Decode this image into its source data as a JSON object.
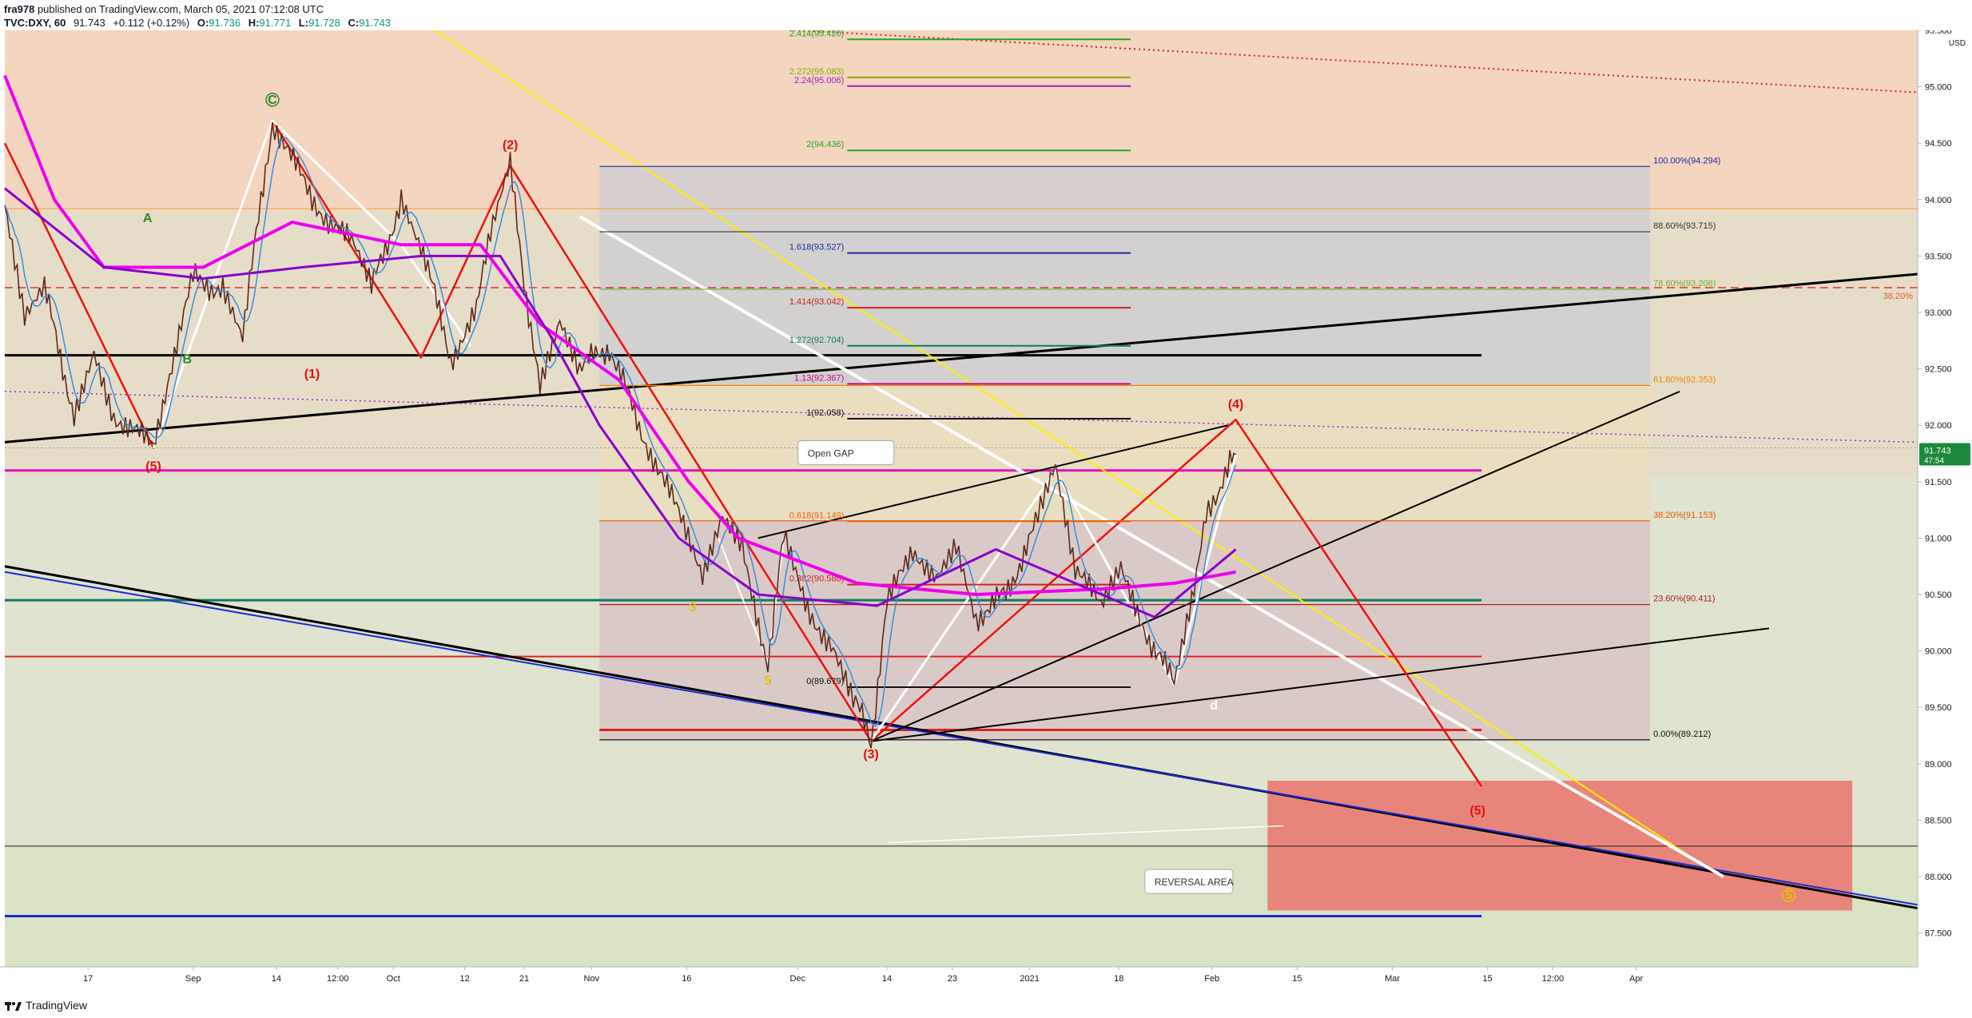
{
  "header": {
    "author": "fra978",
    "published_text": "published on TradingView.com, March 05, 2021 07:12:08 UTC",
    "symbol": "TVC:DXY, 60",
    "last": "91.743",
    "change": "+0.112 (+0.12%)",
    "open_label": "O:",
    "open": "91.736",
    "high_label": "H:",
    "high": "91.771",
    "low_label": "L:",
    "low": "91.728",
    "close_label": "C:",
    "close": "91.743"
  },
  "footer": {
    "brand": "TradingView"
  },
  "colors": {
    "up": "#089981",
    "down": "#f23645",
    "fib_top_zone": "#f4d5bf",
    "pink_ma": "#ee00ee",
    "purple_ma": "#8800cc",
    "price_badge": "#1b8a3a"
  },
  "chart_data": {
    "type": "candlestick",
    "title": "",
    "currency": "USD",
    "y_range": [
      87.2,
      95.5
    ],
    "price_axis_ticks": [
      "95.500",
      "95.000",
      "94.500",
      "94.000",
      "93.500",
      "93.000",
      "92.500",
      "92.000",
      "91.500",
      "91.000",
      "90.500",
      "90.000",
      "89.500",
      "89.000",
      "88.500",
      "88.000",
      "87.500"
    ],
    "time_axis_ticks": [
      "17",
      "Sep",
      "14",
      "12:00",
      "Oct",
      "12",
      "21",
      "Nov",
      "16",
      "Dec",
      "14",
      "23",
      "2021",
      "18",
      "Feb",
      "15",
      "Mar",
      "15",
      "12:00",
      "Apr"
    ],
    "last_price": "91.743",
    "last_price_sub": "47:54",
    "price_path": [
      [
        0,
        93.9
      ],
      [
        10,
        92.9
      ],
      [
        20,
        93.2
      ],
      [
        35,
        92.1
      ],
      [
        45,
        92.7
      ],
      [
        55,
        92.1
      ],
      [
        75,
        91.8
      ],
      [
        82,
        92.4
      ],
      [
        95,
        93.3
      ],
      [
        110,
        93.2
      ],
      [
        120,
        92.8
      ],
      [
        135,
        94.7
      ],
      [
        155,
        94.0
      ],
      [
        175,
        93.6
      ],
      [
        185,
        93.2
      ],
      [
        200,
        94.0
      ],
      [
        210,
        93.6
      ],
      [
        225,
        92.6
      ],
      [
        238,
        93.0
      ],
      [
        245,
        93.7
      ],
      [
        255,
        94.3
      ],
      [
        262,
        93.3
      ],
      [
        270,
        92.3
      ],
      [
        280,
        92.9
      ],
      [
        290,
        92.5
      ],
      [
        305,
        92.7
      ],
      [
        320,
        92.0
      ],
      [
        340,
        91.2
      ],
      [
        352,
        90.7
      ],
      [
        362,
        91.2
      ],
      [
        372,
        90.9
      ],
      [
        385,
        89.9
      ],
      [
        393,
        91.0
      ],
      [
        405,
        90.4
      ],
      [
        418,
        90.0
      ],
      [
        428,
        89.6
      ],
      [
        437,
        89.2
      ],
      [
        445,
        90.4
      ],
      [
        458,
        90.9
      ],
      [
        470,
        90.7
      ],
      [
        480,
        91.0
      ],
      [
        490,
        90.3
      ],
      [
        505,
        90.5
      ],
      [
        520,
        91.1
      ],
      [
        530,
        91.6
      ],
      [
        540,
        90.7
      ],
      [
        553,
        90.4
      ],
      [
        563,
        90.7
      ],
      [
        575,
        90.2
      ],
      [
        590,
        89.7
      ],
      [
        600,
        90.5
      ],
      [
        606,
        91.2
      ],
      [
        612,
        91.4
      ],
      [
        618,
        91.75
      ],
      [
        621,
        91.74
      ]
    ],
    "moving_averages": [
      {
        "color": "#ee00ee",
        "values": [
          [
            0,
            95.1
          ],
          [
            25,
            94.0
          ],
          [
            50,
            93.4
          ],
          [
            100,
            93.4
          ],
          [
            145,
            93.8
          ],
          [
            200,
            93.6
          ],
          [
            240,
            93.6
          ],
          [
            270,
            92.9
          ],
          [
            310,
            92.4
          ],
          [
            345,
            91.5
          ],
          [
            370,
            91.0
          ],
          [
            430,
            90.6
          ],
          [
            490,
            90.5
          ],
          [
            555,
            90.55
          ],
          [
            590,
            90.6
          ],
          [
            621,
            90.7
          ]
        ]
      },
      {
        "color": "#8800cc",
        "values": [
          [
            0,
            94.1
          ],
          [
            50,
            93.4
          ],
          [
            100,
            93.3
          ],
          [
            150,
            93.4
          ],
          [
            210,
            93.5
          ],
          [
            250,
            93.5
          ],
          [
            275,
            92.8
          ],
          [
            300,
            92.0
          ],
          [
            340,
            91.0
          ],
          [
            380,
            90.5
          ],
          [
            440,
            90.4
          ],
          [
            500,
            90.9
          ],
          [
            540,
            90.6
          ],
          [
            580,
            90.3
          ],
          [
            621,
            90.9
          ]
        ]
      }
    ],
    "fib_extension": [
      {
        "label": "2.414(95.420)",
        "value": 95.42,
        "color": "#21a821"
      },
      {
        "label": "2.272(95.083)",
        "value": 95.083,
        "color": "#88aa00"
      },
      {
        "label": "2.24(95.006)",
        "value": 95.006,
        "color": "#9922cc"
      },
      {
        "label": "2(94.436)",
        "value": 94.436,
        "color": "#21a821"
      },
      {
        "label": "1.618(93.527)",
        "value": 93.527,
        "color": "#1c2aa8"
      },
      {
        "label": "1.414(93.042)",
        "value": 93.042,
        "color": "#cc2222"
      },
      {
        "label": "1.272(92.704)",
        "value": 92.704,
        "color": "#107a5e"
      },
      {
        "label": "1.13(92.367)",
        "value": 92.367,
        "color": "#d4008a"
      },
      {
        "label": "1(92.058)",
        "value": 92.058,
        "color": "#111111"
      },
      {
        "label": "0.618(91.149)",
        "value": 91.149,
        "color": "#ee6600"
      },
      {
        "label": "0.382(90.588)",
        "value": 90.588,
        "color": "#cc2222"
      },
      {
        "label": "0(89.679)",
        "value": 89.679,
        "color": "#111111"
      }
    ],
    "fib_retracement": [
      {
        "label": "100.00%(94.294)",
        "value": 94.294,
        "color": "#1c2aa8"
      },
      {
        "label": "88.60%(93.715)",
        "value": 93.715,
        "color": "#333333"
      },
      {
        "label": "78.60%(93.206)",
        "value": 93.206,
        "color": "#77aa33"
      },
      {
        "label": "61.80%(92.353)",
        "value": 92.353,
        "color": "#ee8800"
      },
      {
        "label": "38.20%(91.153)",
        "value": 91.153,
        "color": "#ee5500"
      },
      {
        "label": "23.60%(90.411)",
        "value": 90.411,
        "color": "#aa2222"
      },
      {
        "label": "0.00%(89.212)",
        "value": 89.212,
        "color": "#111111"
      }
    ],
    "right_edge_label": "38.20%",
    "wave_labels": [
      {
        "text": "C",
        "color": "#2a8a2a",
        "circle": true
      },
      {
        "text": "A",
        "color": "#2a8a2a",
        "circle": false
      },
      {
        "text": "B",
        "color": "#2a8a2a",
        "circle": false
      },
      {
        "text": "(5)",
        "color": "#e01010",
        "circle": false
      },
      {
        "text": "(1)",
        "color": "#e01010",
        "circle": false
      },
      {
        "text": "(2)",
        "color": "#e01010",
        "circle": false
      },
      {
        "text": "(3)",
        "color": "#e01010",
        "circle": false
      },
      {
        "text": "(4)",
        "color": "#e01010",
        "circle": false
      },
      {
        "text": "(5)",
        "color": "#e01010",
        "circle": false
      },
      {
        "text": "3",
        "color": "#e8c000",
        "circle": false
      },
      {
        "text": "5",
        "color": "#e8c000",
        "circle": false
      },
      {
        "text": "5",
        "color": "#e8c000",
        "circle": true
      },
      {
        "text": "d",
        "color": "#ffffff",
        "circle": false
      }
    ],
    "annotations": [
      {
        "text": "Open GAP"
      },
      {
        "text": "REVERSAL AREA"
      }
    ]
  }
}
